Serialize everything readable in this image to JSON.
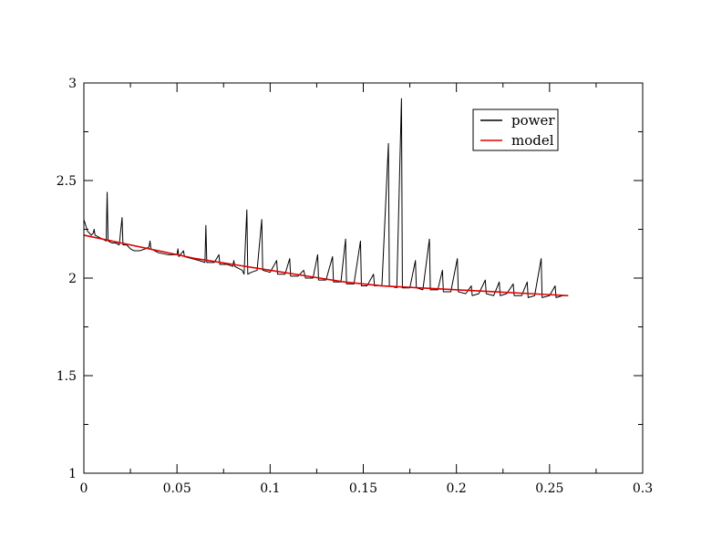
{
  "chart_data": {
    "type": "line",
    "title": "",
    "xlabel": "",
    "ylabel": "",
    "xlim": [
      0,
      0.3
    ],
    "ylim": [
      1,
      3
    ],
    "x_ticks": [
      0,
      0.05,
      0.1,
      0.15,
      0.2,
      0.25,
      0.3
    ],
    "x_tick_labels": [
      "0",
      "0.05",
      "0.1",
      "0.15",
      "0.2",
      "0.25",
      "0.3"
    ],
    "y_ticks": [
      1,
      1.5,
      2,
      2.5,
      3
    ],
    "y_tick_labels": [
      "1",
      "1.5",
      "2",
      "2.5",
      "3"
    ],
    "grid": false,
    "legend": {
      "placement": "top-right",
      "entries": [
        "power",
        "model"
      ]
    },
    "series": [
      {
        "name": "power",
        "color": "#000000",
        "points": [
          [
            0.0,
            2.3
          ],
          [
            0.001,
            2.27
          ],
          [
            0.002,
            2.24
          ],
          [
            0.003,
            2.23
          ],
          [
            0.004,
            2.22
          ],
          [
            0.005,
            2.23
          ],
          [
            0.0055,
            2.25
          ],
          [
            0.006,
            2.22
          ],
          [
            0.008,
            2.21
          ],
          [
            0.01,
            2.2
          ],
          [
            0.012,
            2.19
          ],
          [
            0.0125,
            2.44
          ],
          [
            0.013,
            2.19
          ],
          [
            0.015,
            2.18
          ],
          [
            0.017,
            2.18
          ],
          [
            0.019,
            2.17
          ],
          [
            0.0205,
            2.31
          ],
          [
            0.021,
            2.17
          ],
          [
            0.023,
            2.17
          ],
          [
            0.025,
            2.15
          ],
          [
            0.027,
            2.14
          ],
          [
            0.03,
            2.14
          ],
          [
            0.033,
            2.15
          ],
          [
            0.035,
            2.16
          ],
          [
            0.0355,
            2.19
          ],
          [
            0.036,
            2.15
          ],
          [
            0.04,
            2.13
          ],
          [
            0.045,
            2.12
          ],
          [
            0.05,
            2.12
          ],
          [
            0.0505,
            2.15
          ],
          [
            0.051,
            2.11
          ],
          [
            0.0535,
            2.14
          ],
          [
            0.054,
            2.11
          ],
          [
            0.058,
            2.1
          ],
          [
            0.062,
            2.09
          ],
          [
            0.065,
            2.08
          ],
          [
            0.0655,
            2.27
          ],
          [
            0.066,
            2.08
          ],
          [
            0.07,
            2.08
          ],
          [
            0.0725,
            2.12
          ],
          [
            0.073,
            2.07
          ],
          [
            0.077,
            2.07
          ],
          [
            0.08,
            2.06
          ],
          [
            0.0805,
            2.09
          ],
          [
            0.081,
            2.06
          ],
          [
            0.085,
            2.04
          ],
          [
            0.086,
            2.02
          ],
          [
            0.0875,
            2.35
          ],
          [
            0.088,
            2.02
          ],
          [
            0.09,
            2.03
          ],
          [
            0.093,
            2.04
          ],
          [
            0.0955,
            2.3
          ],
          [
            0.096,
            2.04
          ],
          [
            0.1,
            2.03
          ],
          [
            0.1035,
            2.09
          ],
          [
            0.104,
            2.02
          ],
          [
            0.108,
            2.02
          ],
          [
            0.1105,
            2.1
          ],
          [
            0.111,
            2.01
          ],
          [
            0.115,
            2.01
          ],
          [
            0.118,
            2.04
          ],
          [
            0.119,
            2.0
          ],
          [
            0.123,
            2.0
          ],
          [
            0.1255,
            2.12
          ],
          [
            0.126,
            1.99
          ],
          [
            0.13,
            1.99
          ],
          [
            0.1335,
            2.11
          ],
          [
            0.134,
            1.98
          ],
          [
            0.138,
            1.98
          ],
          [
            0.1405,
            2.2
          ],
          [
            0.141,
            1.97
          ],
          [
            0.145,
            1.97
          ],
          [
            0.1485,
            2.19
          ],
          [
            0.149,
            1.96
          ],
          [
            0.152,
            1.96
          ],
          [
            0.1555,
            2.02
          ],
          [
            0.156,
            1.96
          ],
          [
            0.16,
            1.96
          ],
          [
            0.1635,
            2.69
          ],
          [
            0.164,
            1.96
          ],
          [
            0.168,
            1.95
          ],
          [
            0.1705,
            2.92
          ],
          [
            0.171,
            1.95
          ],
          [
            0.175,
            1.95
          ],
          [
            0.178,
            2.09
          ],
          [
            0.1785,
            1.95
          ],
          [
            0.182,
            1.94
          ],
          [
            0.1855,
            2.2
          ],
          [
            0.186,
            1.94
          ],
          [
            0.19,
            1.94
          ],
          [
            0.1925,
            2.04
          ],
          [
            0.193,
            1.93
          ],
          [
            0.197,
            1.93
          ],
          [
            0.2005,
            2.1
          ],
          [
            0.201,
            1.93
          ],
          [
            0.205,
            1.92
          ],
          [
            0.208,
            1.96
          ],
          [
            0.2085,
            1.91
          ],
          [
            0.212,
            1.92
          ],
          [
            0.2155,
            1.99
          ],
          [
            0.216,
            1.92
          ],
          [
            0.22,
            1.91
          ],
          [
            0.223,
            1.98
          ],
          [
            0.2235,
            1.91
          ],
          [
            0.227,
            1.92
          ],
          [
            0.2305,
            1.97
          ],
          [
            0.231,
            1.91
          ],
          [
            0.235,
            1.91
          ],
          [
            0.238,
            1.98
          ],
          [
            0.2385,
            1.9
          ],
          [
            0.242,
            1.91
          ],
          [
            0.2455,
            2.1
          ],
          [
            0.246,
            1.9
          ],
          [
            0.25,
            1.91
          ],
          [
            0.253,
            1.96
          ],
          [
            0.2535,
            1.9
          ],
          [
            0.257,
            1.91
          ],
          [
            0.26,
            1.91
          ]
        ]
      },
      {
        "name": "model",
        "color": "#e00000",
        "points": [
          [
            0.0,
            2.22
          ],
          [
            0.02,
            2.18
          ],
          [
            0.04,
            2.14
          ],
          [
            0.06,
            2.1
          ],
          [
            0.08,
            2.07
          ],
          [
            0.1,
            2.04
          ],
          [
            0.12,
            2.01
          ],
          [
            0.14,
            1.98
          ],
          [
            0.16,
            1.96
          ],
          [
            0.18,
            1.95
          ],
          [
            0.2,
            1.94
          ],
          [
            0.22,
            1.93
          ],
          [
            0.24,
            1.92
          ],
          [
            0.26,
            1.91
          ]
        ]
      }
    ]
  }
}
